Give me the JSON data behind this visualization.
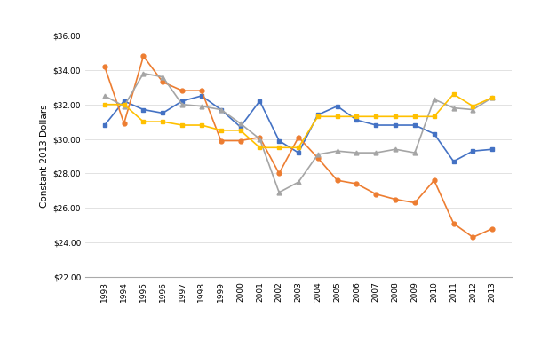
{
  "years": [
    1993,
    1994,
    1995,
    1996,
    1997,
    1998,
    1999,
    2000,
    2001,
    2002,
    2003,
    2004,
    2005,
    2006,
    2007,
    2008,
    2009,
    2010,
    2011,
    2012,
    2013
  ],
  "BC": [
    30.8,
    32.2,
    31.7,
    31.5,
    32.2,
    32.5,
    31.7,
    30.7,
    32.2,
    29.9,
    29.2,
    31.4,
    31.9,
    31.1,
    30.8,
    30.8,
    30.8,
    30.3,
    28.7,
    29.3,
    29.4
  ],
  "AB": [
    34.2,
    30.9,
    34.8,
    33.3,
    32.8,
    32.8,
    29.9,
    29.9,
    30.1,
    28.0,
    30.1,
    28.9,
    27.6,
    27.4,
    26.8,
    26.5,
    26.3,
    27.6,
    25.1,
    24.3,
    24.8
  ],
  "SK": [
    32.5,
    31.9,
    33.8,
    33.6,
    32.0,
    31.9,
    31.7,
    30.9,
    30.0,
    26.9,
    27.5,
    29.1,
    29.3,
    29.2,
    29.2,
    29.4,
    29.2,
    32.3,
    31.8,
    31.7,
    32.4
  ],
  "MB": [
    32.0,
    32.0,
    31.0,
    31.0,
    30.8,
    30.8,
    30.5,
    30.5,
    29.5,
    29.5,
    29.5,
    31.3,
    31.3,
    31.3,
    31.3,
    31.3,
    31.3,
    31.3,
    32.6,
    31.9,
    32.4
  ],
  "colors": {
    "BC": "#4472C4",
    "AB": "#ED7D31",
    "SK": "#A5A5A5",
    "MB": "#FFC000"
  },
  "markers": {
    "BC": "s",
    "AB": "o",
    "SK": "^",
    "MB": "s"
  },
  "ylabel": "Constant 2013 Dollars",
  "ylim": [
    22.0,
    36.0
  ],
  "yticks": [
    22.0,
    24.0,
    26.0,
    28.0,
    30.0,
    32.0,
    34.0,
    36.0
  ],
  "background_color": "#FFFFFF",
  "panel_color": "#FFFFFF"
}
